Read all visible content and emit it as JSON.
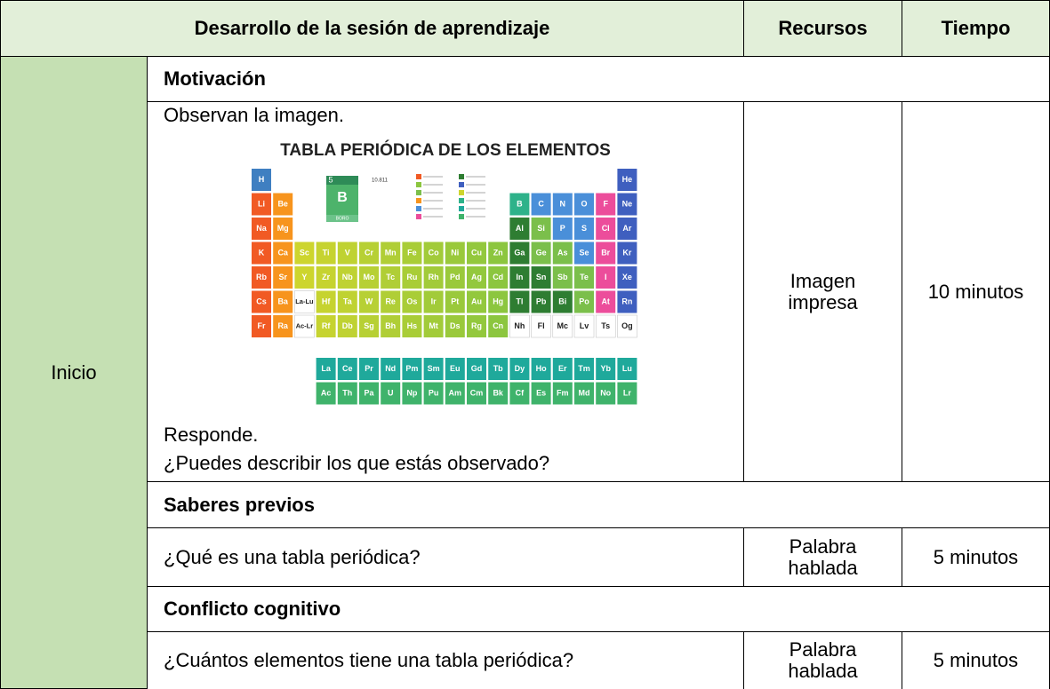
{
  "header": {
    "development": "Desarrollo de la sesión de aprendizaje",
    "resources": "Recursos",
    "time": "Tiempo"
  },
  "phase": "Inicio",
  "sections": [
    {
      "title": "Motivación",
      "content": [
        "Observan la imagen.",
        "Responde.",
        "¿Puedes describir los que estás observado?"
      ],
      "resource": "Imagen impresa",
      "time": "10 minutos"
    },
    {
      "title": "Saberes previos",
      "content": [
        "¿Qué es una tabla periódica?"
      ],
      "resource": "Palabra hablada",
      "time": "5 minutos"
    },
    {
      "title": "Conflicto cognitivo",
      "content": [
        "¿Cuántos elementos tiene una tabla periódica?"
      ],
      "resource": "Palabra hablada",
      "time": "5 minutos"
    }
  ],
  "periodic_table": {
    "title": "TABLA PERIÓDICA DE LOS ELEMENTOS",
    "key": {
      "number": 5,
      "mass": 10.811,
      "symbol": "B",
      "name": "BORO"
    },
    "rows": [
      [
        "H",
        null,
        null,
        null,
        null,
        null,
        null,
        null,
        null,
        null,
        null,
        null,
        null,
        null,
        null,
        null,
        null,
        "He"
      ],
      [
        "Li",
        "Be",
        null,
        null,
        null,
        null,
        null,
        null,
        null,
        null,
        null,
        null,
        "B",
        "C",
        "N",
        "O",
        "F",
        "Ne"
      ],
      [
        "Na",
        "Mg",
        null,
        null,
        null,
        null,
        null,
        null,
        null,
        null,
        null,
        null,
        "Al",
        "Si",
        "P",
        "S",
        "Cl",
        "Ar"
      ],
      [
        "K",
        "Ca",
        "Sc",
        "Ti",
        "V",
        "Cr",
        "Mn",
        "Fe",
        "Co",
        "Ni",
        "Cu",
        "Zn",
        "Ga",
        "Ge",
        "As",
        "Se",
        "Br",
        "Kr"
      ],
      [
        "Rb",
        "Sr",
        "Y",
        "Zr",
        "Nb",
        "Mo",
        "Tc",
        "Ru",
        "Rh",
        "Pd",
        "Ag",
        "Cd",
        "In",
        "Sn",
        "Sb",
        "Te",
        "I",
        "Xe"
      ],
      [
        "Cs",
        "Ba",
        "La-Lu",
        "Hf",
        "Ta",
        "W",
        "Re",
        "Os",
        "Ir",
        "Pt",
        "Au",
        "Hg",
        "Tl",
        "Pb",
        "Bi",
        "Po",
        "At",
        "Rn"
      ],
      [
        "Fr",
        "Ra",
        "Ac-Lr",
        "Rf",
        "Db",
        "Sg",
        "Bh",
        "Hs",
        "Mt",
        "Ds",
        "Rg",
        "Cn",
        "Nh",
        "Fl",
        "Mc",
        "Lv",
        "Ts",
        "Og"
      ]
    ],
    "f_block": [
      [
        "La",
        "Ce",
        "Pr",
        "Nd",
        "Pm",
        "Sm",
        "Eu",
        "Gd",
        "Tb",
        "Dy",
        "Ho",
        "Er",
        "Tm",
        "Yb",
        "Lu"
      ],
      [
        "Ac",
        "Th",
        "Pa",
        "U",
        "Np",
        "Pu",
        "Am",
        "Cm",
        "Bk",
        "Cf",
        "Es",
        "Fm",
        "Md",
        "No",
        "Lr"
      ]
    ]
  }
}
